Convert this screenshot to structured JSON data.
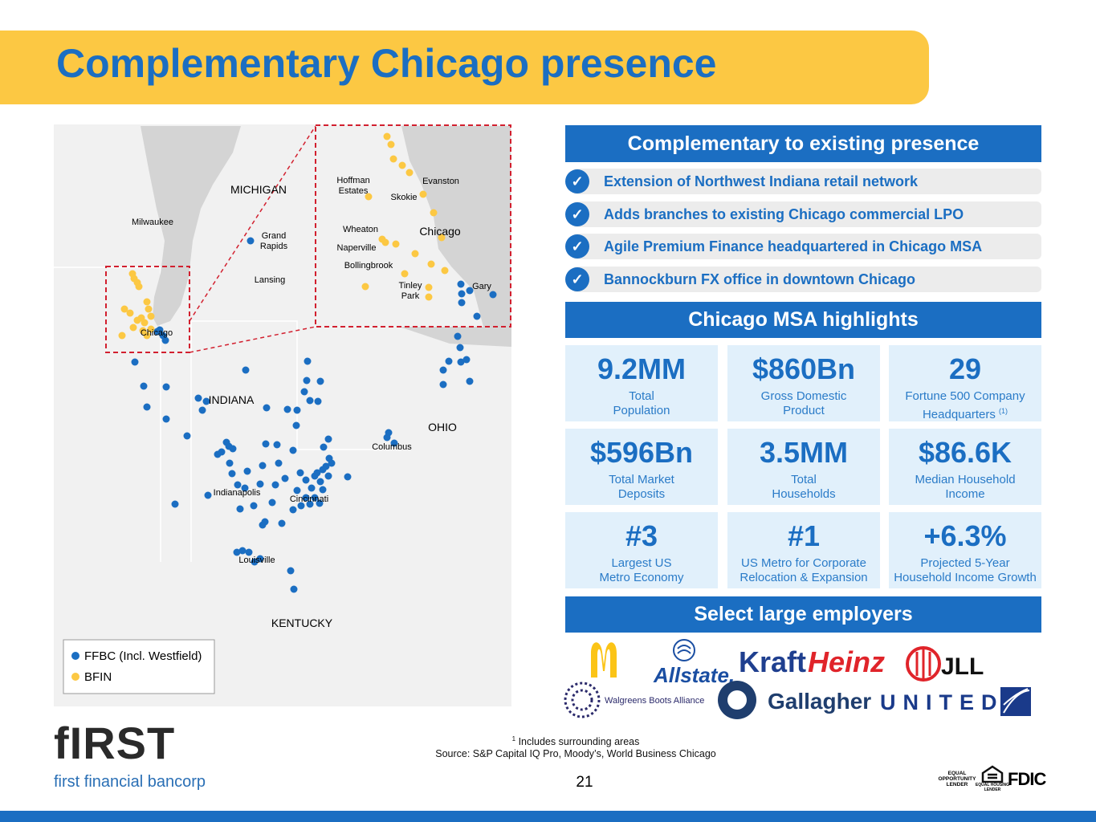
{
  "header": {
    "title": "Complementary Chicago presence"
  },
  "map": {
    "labels": [
      "MICHIGAN",
      "Milwaukee",
      [
        "Grand",
        "Rapids"
      ],
      "Lansing",
      "Chicago",
      "INDIANA",
      "OHIO",
      "Columbus",
      "Indianapolis",
      "Cincinnati",
      "Louisville",
      "KENTUCKY"
    ],
    "inset_labels": [
      [
        "Hoffman",
        "Estates"
      ],
      "Evanston",
      "Skokie",
      "Chicago",
      "Wheaton",
      "Naperville",
      "Bollingbrook",
      [
        "Tinley",
        "Park"
      ],
      "Gary"
    ],
    "legend": [
      "FFBC (Incl. Westfield)",
      "BFIN"
    ]
  },
  "presence": {
    "heading": "Complementary to existing presence",
    "items": [
      "Extension of Northwest Indiana retail network",
      "Adds branches to existing Chicago commercial LPO",
      "Agile Premium Finance headquartered in Chicago MSA",
      "Bannockburn FX office in downtown Chicago"
    ]
  },
  "highlights": {
    "heading": "Chicago MSA highlights",
    "stats": [
      {
        "value": "9.2MM",
        "lines": [
          "Total",
          "Population"
        ]
      },
      {
        "value": "$860Bn",
        "lines": [
          "Gross Domestic",
          "Product"
        ]
      },
      {
        "value": "29",
        "lines": [
          "Fortune 500 Company",
          "Headquarters"
        ],
        "note": "(1)"
      },
      {
        "value": "$596Bn",
        "lines": [
          "Total Market",
          "Deposits"
        ]
      },
      {
        "value": "3.5MM",
        "lines": [
          "Total",
          "Households"
        ]
      },
      {
        "value": "$86.6K",
        "lines": [
          "Median Household",
          "Income"
        ]
      },
      {
        "value": "#3",
        "lines": [
          "Largest US",
          "Metro Economy"
        ]
      },
      {
        "value": "#1",
        "lines": [
          "US Metro for Corporate",
          "Relocation & Expansion"
        ]
      },
      {
        "value": "+6.3%",
        "lines": [
          "Projected 5-Year",
          "Household Income Growth"
        ]
      }
    ]
  },
  "employers": {
    "heading": "Select large employers",
    "logos": [
      "Allstate.",
      "Kraft",
      "Heinz",
      "JLL",
      "Walgreens Boots Alliance",
      "Gallagher",
      "UNITED"
    ]
  },
  "footer": {
    "footnote_mark": "1",
    "footnote": "Includes surrounding areas",
    "source": "Source: S&P Capital IQ Pro, Moody’s, World Business Chicago",
    "page": "21",
    "logo": "fIRST",
    "logo_sub": "first financial bancorp",
    "badges": [
      [
        "EQUAL",
        "OPPORTUNITY",
        "LENDER"
      ],
      [
        "EQUAL HOUSING",
        "LENDER"
      ],
      "FDIC"
    ]
  }
}
